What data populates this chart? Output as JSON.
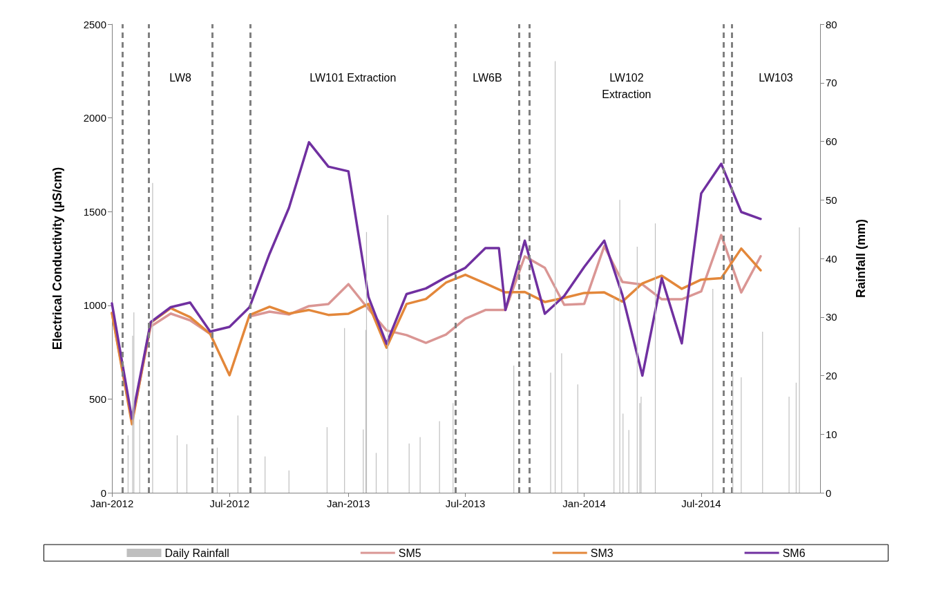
{
  "chart_data": {
    "type": "line",
    "ylabel": "Electrical Conductivity (µS/cm)",
    "y2label": "Rainfall (mm)",
    "xlim": [
      "2012-01-01",
      "2015-01-01"
    ],
    "xticks": [
      {
        "value": "2012-01-01",
        "label": "Jan-2012"
      },
      {
        "value": "2012-07-01",
        "label": "Jul-2012"
      },
      {
        "value": "2013-01-01",
        "label": "Jan-2013"
      },
      {
        "value": "2013-07-01",
        "label": "Jul-2013"
      },
      {
        "value": "2014-01-01",
        "label": "Jan-2014"
      },
      {
        "value": "2014-07-01",
        "label": "Jul-2014"
      }
    ],
    "ylim": [
      0,
      2500
    ],
    "yticks": [
      0,
      500,
      1000,
      1500,
      2000,
      2500
    ],
    "y2lim": [
      0,
      80
    ],
    "y2ticks": [
      0,
      10,
      20,
      30,
      40,
      50,
      60,
      70,
      80
    ],
    "grid": false,
    "legend": "bottom",
    "marker": "none",
    "line_style": "solid",
    "series": [
      {
        "name": "Daily Rainfall",
        "type": "bar",
        "axis": "y2",
        "color": "#bfbfbf",
        "x": [
          "2012-01-26",
          "2012-02-02",
          "2012-02-04",
          "2012-02-13",
          "2012-03-04",
          "2012-04-11",
          "2012-04-26",
          "2012-06-12",
          "2012-07-14",
          "2012-08-25",
          "2012-10-01",
          "2012-11-29",
          "2012-12-26",
          "2013-01-24",
          "2013-01-28",
          "2013-01-29",
          "2013-02-13",
          "2013-03-03",
          "2013-04-05",
          "2013-04-22",
          "2013-05-22",
          "2013-06-12",
          "2013-09-14",
          "2013-11-10",
          "2013-11-17",
          "2013-11-27",
          "2013-12-22",
          "2014-02-16",
          "2014-02-25",
          "2014-03-02",
          "2014-03-11",
          "2014-03-24",
          "2014-03-28",
          "2014-03-30",
          "2014-04-21",
          "2014-07-19",
          "2014-08-19",
          "2014-09-01",
          "2014-10-04",
          "2014-11-14",
          "2014-11-25",
          "2014-11-30"
        ],
        "values": [
          9.8,
          26.8,
          30.8,
          12.5,
          52.9,
          9.8,
          8.3,
          7.7,
          13.2,
          6.2,
          3.8,
          11.2,
          28.1,
          10.8,
          27.8,
          44.5,
          6.8,
          47.4,
          8.4,
          9.5,
          12.2,
          15.3,
          21.7,
          20.5,
          73.7,
          23.8,
          18.5,
          33.3,
          50.0,
          13.5,
          10.7,
          42.0,
          15.3,
          16.4,
          46.0,
          34.8,
          20.5,
          19.7,
          27.5,
          16.4,
          18.8,
          45.3
        ]
      },
      {
        "name": "SM5",
        "color": "#da9694",
        "x": [
          "2012-01-01",
          "2012-02-01",
          "2012-03-01",
          "2012-04-01",
          "2012-05-01",
          "2012-06-01",
          "2012-07-01",
          "2012-08-01",
          "2012-09-01",
          "2012-10-01",
          "2012-11-01",
          "2012-12-01",
          "2013-01-01",
          "2013-02-01",
          "2013-03-01",
          "2013-04-01",
          "2013-05-01",
          "2013-06-01",
          "2013-07-01",
          "2013-08-01",
          "2013-09-01",
          "2013-10-01",
          "2013-11-01",
          "2013-12-01",
          "2014-01-01",
          "2014-02-01",
          "2014-03-01",
          "2014-04-01",
          "2014-05-01",
          "2014-06-01",
          "2014-07-01",
          "2014-08-01",
          "2014-09-01",
          "2014-10-01"
        ],
        "values": [
          960,
          380,
          887,
          956,
          920,
          848,
          null,
          940,
          966,
          951,
          996,
          1007,
          1113,
          980,
          866,
          841,
          800,
          844,
          929,
          975,
          975,
          1261,
          1200,
          1003,
          1008,
          1316,
          1125,
          1111,
          1032,
          1032,
          1074,
          1375,
          1069,
          1262
        ]
      },
      {
        "name": "SM3",
        "color": "#e3873a",
        "x": [
          "2012-01-01",
          "2012-02-01",
          "2012-03-01",
          "2012-04-01",
          "2012-05-01",
          "2012-06-01",
          "2012-07-01",
          "2012-08-01",
          "2012-09-01",
          "2012-10-01",
          "2012-11-01",
          "2012-12-01",
          "2013-01-01",
          "2013-02-01",
          "2013-03-01",
          "2013-04-01",
          "2013-05-01",
          "2013-06-01",
          "2013-07-01",
          "2013-08-01",
          "2013-09-01",
          "2013-10-01",
          "2013-11-01",
          "2013-12-01",
          "2014-01-01",
          "2014-02-01",
          "2014-03-01",
          "2014-04-01",
          "2014-05-01",
          "2014-06-01",
          "2014-07-01",
          "2014-08-01",
          "2014-09-01",
          "2014-10-01"
        ],
        "values": [
          959,
          365,
          907,
          985,
          937,
          848,
          627,
          948,
          992,
          956,
          975,
          949,
          955,
          1007,
          774,
          1007,
          1034,
          1121,
          1163,
          1117,
          1069,
          1071,
          1018,
          1040,
          1066,
          1069,
          1020,
          1117,
          1158,
          1088,
          1137,
          1145,
          1303,
          1187
        ]
      },
      {
        "name": "SM6",
        "color": "#7030a0",
        "x": [
          "2012-01-01",
          "2012-02-01",
          "2012-03-01",
          "2012-04-01",
          "2012-05-01",
          "2012-06-01",
          "2012-07-01",
          "2012-08-01",
          "2012-09-01",
          "2012-10-01",
          "2012-11-01",
          "2012-12-01",
          "2013-01-01",
          "2013-02-01",
          "2013-03-01",
          "2013-04-01",
          "2013-05-01",
          "2013-06-01",
          "2013-07-01",
          "2013-08-01",
          "2013-08-22",
          "2013-09-01",
          "2013-10-01",
          "2013-11-01",
          "2013-12-01",
          "2014-01-01",
          "2014-02-01",
          "2014-03-01",
          "2014-04-01",
          "2014-05-01",
          "2014-06-01",
          "2014-07-01",
          "2014-08-01",
          "2014-09-01",
          "2014-10-01"
        ],
        "values": [
          1010,
          395,
          910,
          990,
          1015,
          860,
          885,
          990,
          1275,
          1520,
          1870,
          1740,
          1715,
          1045,
          795,
          1060,
          1090,
          1150,
          1200,
          1305,
          1305,
          975,
          1345,
          955,
          1050,
          1205,
          1345,
          1055,
          625,
          1145,
          797,
          1597,
          1755,
          1498,
          1461
        ]
      }
    ],
    "ref_lines": [
      {
        "axis": "x",
        "value": "2012-01-17",
        "color": "#808080",
        "line_style": "dashed"
      },
      {
        "axis": "x",
        "value": "2012-02-27",
        "color": "#808080",
        "line_style": "dashed"
      },
      {
        "axis": "x",
        "value": "2012-06-04",
        "color": "#808080",
        "line_style": "dashed"
      },
      {
        "axis": "x",
        "value": "2012-08-02",
        "color": "#808080",
        "line_style": "dashed"
      },
      {
        "axis": "x",
        "value": "2013-06-16",
        "color": "#808080",
        "line_style": "dashed"
      },
      {
        "axis": "x",
        "value": "2013-09-22",
        "color": "#808080",
        "line_style": "dashed"
      },
      {
        "axis": "x",
        "value": "2013-10-08",
        "color": "#808080",
        "line_style": "dashed"
      },
      {
        "axis": "x",
        "value": "2014-08-05",
        "color": "#808080",
        "line_style": "dashed"
      },
      {
        "axis": "x",
        "value": "2014-08-17",
        "color": "#808080",
        "line_style": "dashed"
      }
    ],
    "annotations": [
      "LW8",
      "LW101 Extraction",
      "LW6B",
      "LW102\nExtraction",
      "LW103"
    ]
  }
}
